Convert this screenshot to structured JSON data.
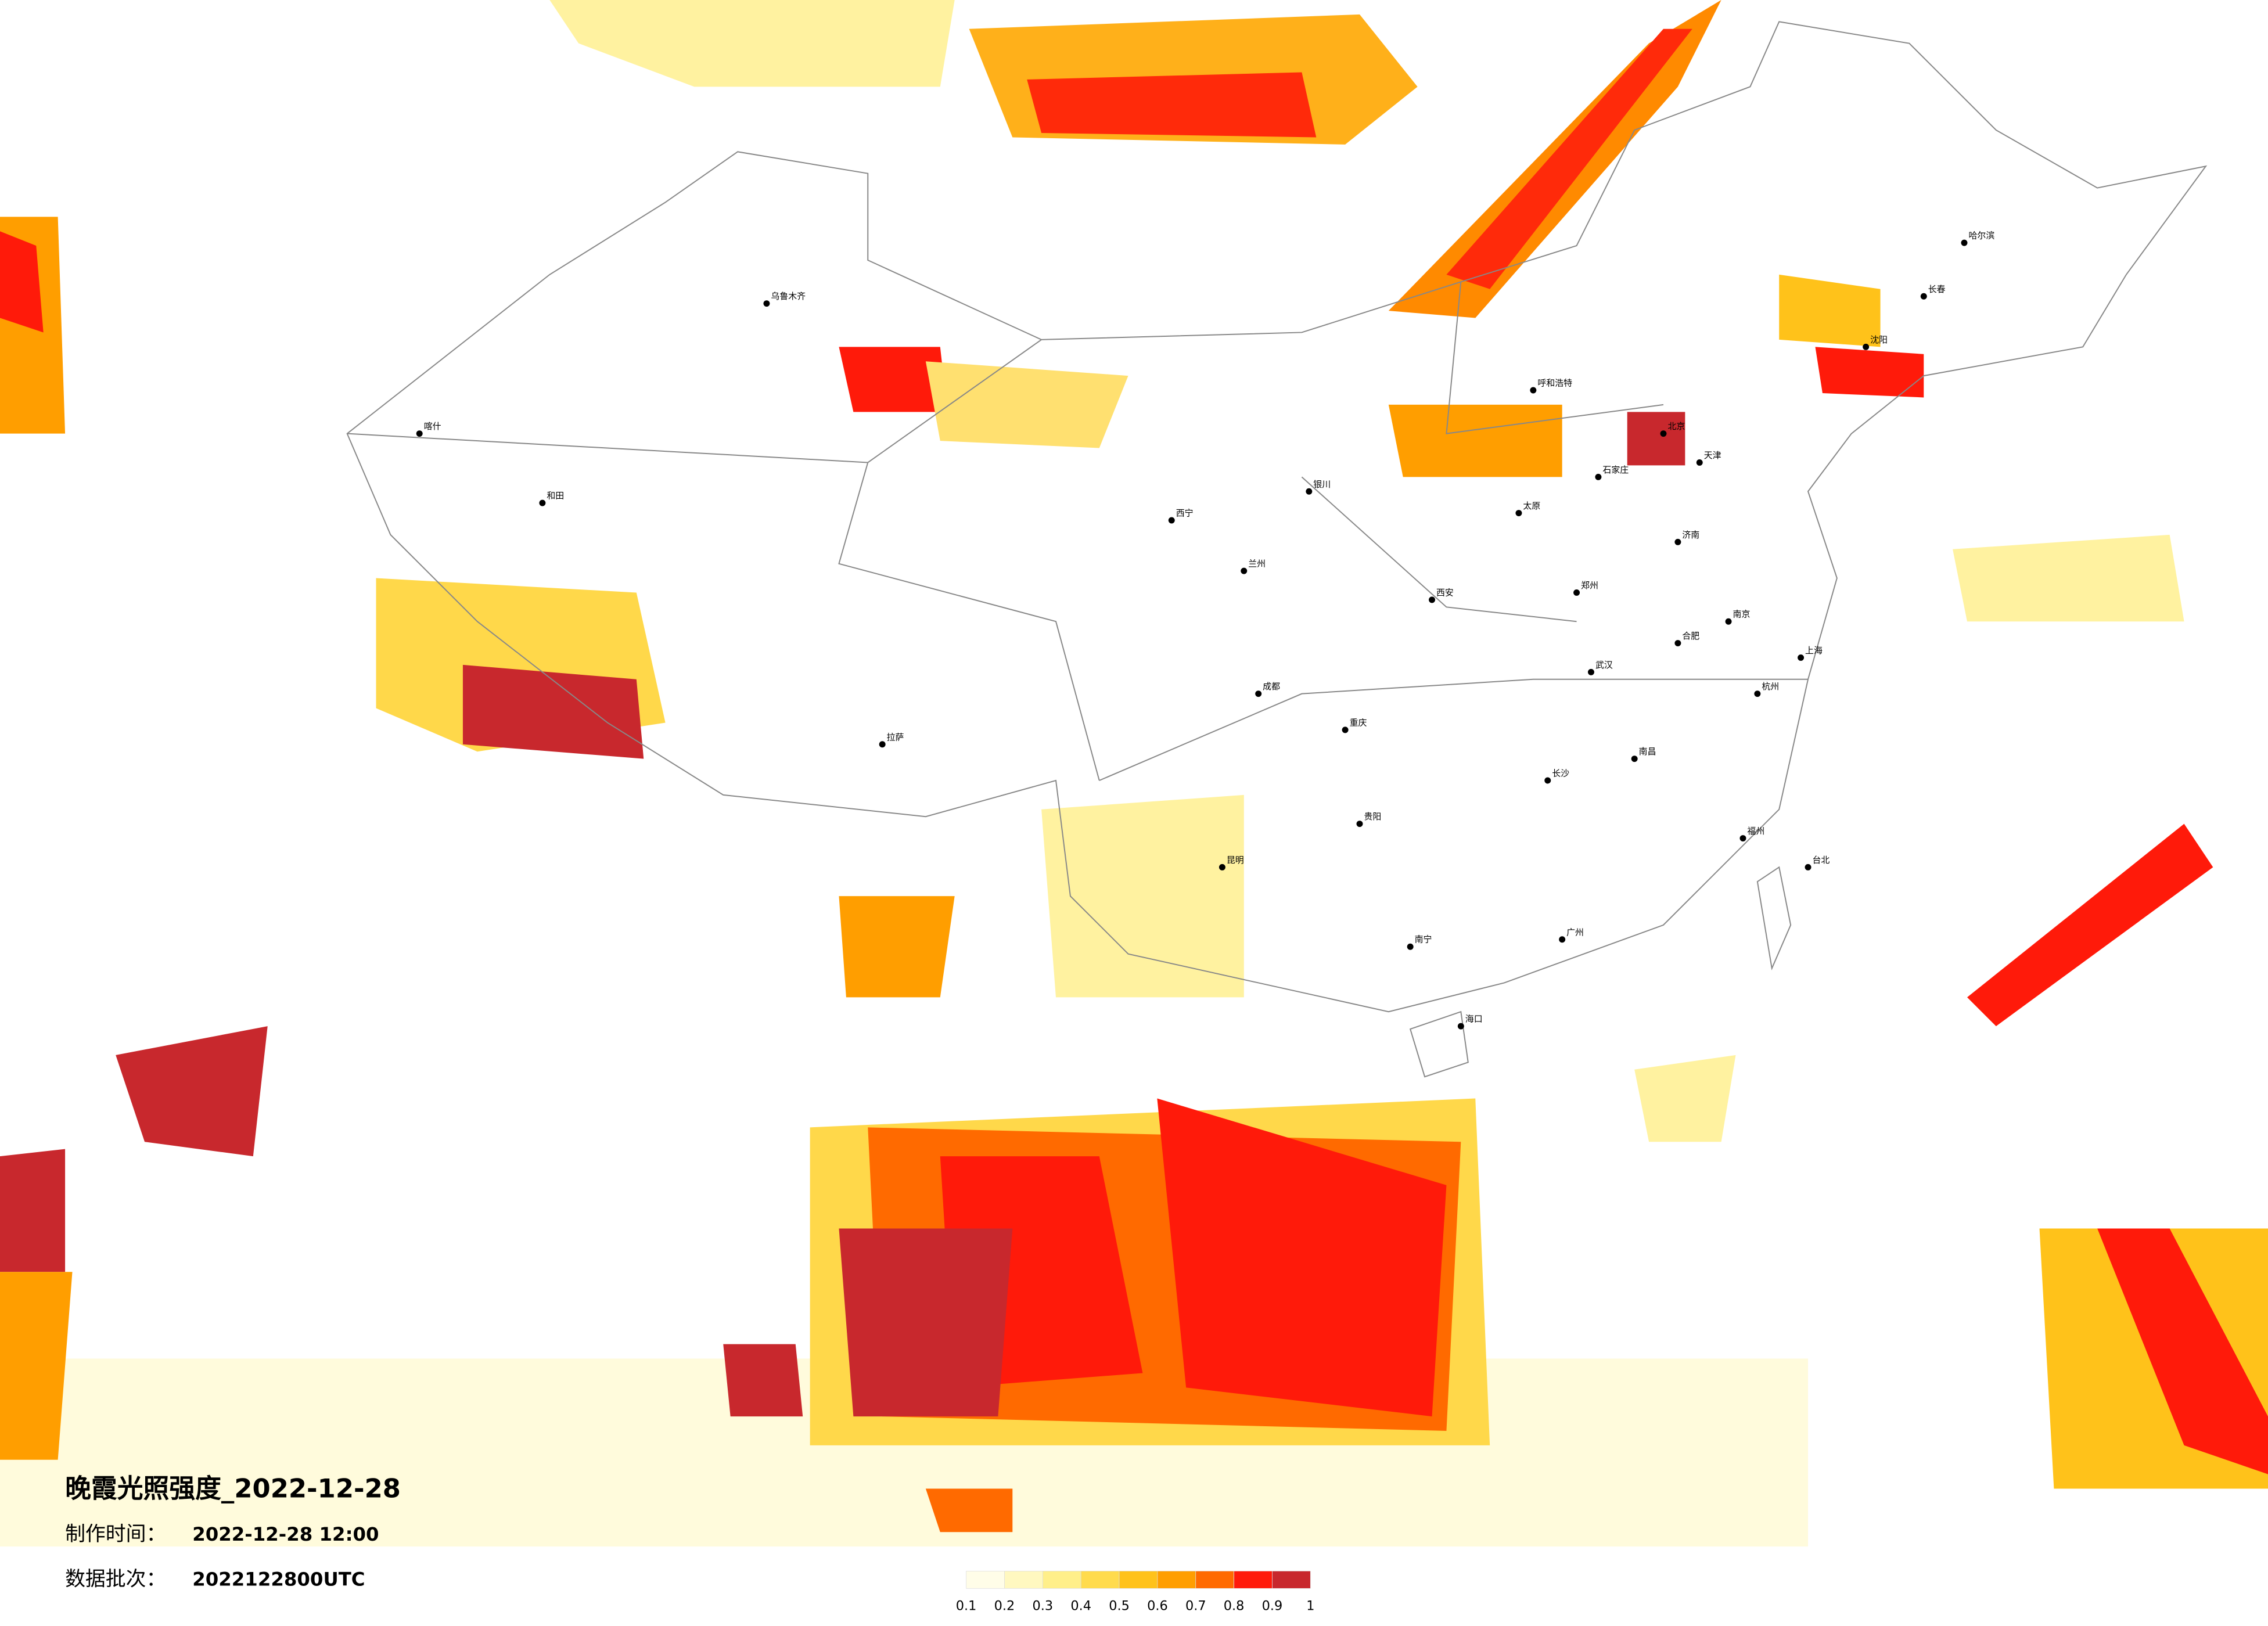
{
  "header": {
    "title": "晚霞光照强度_2022-12-28",
    "made_label": "制作时间：",
    "made_value": "2022-12-28 12:00",
    "batch_label": "数据批次：",
    "batch_value": "2022122800UTC"
  },
  "legend": {
    "ticks": [
      "0.1",
      "0.2",
      "0.3",
      "0.4",
      "0.5",
      "0.6",
      "0.7",
      "0.8",
      "0.9",
      "1"
    ],
    "colors": [
      "#fffde8",
      "#fff8c0",
      "#ffef8a",
      "#ffdb4d",
      "#ffc21a",
      "#ff9e00",
      "#ff6a00",
      "#ff1a0a",
      "#c8282d"
    ]
  },
  "cities": [
    "哈尔滨",
    "长春",
    "沈阳",
    "北京",
    "天津",
    "石家庄",
    "太原",
    "呼和浩特",
    "济南",
    "郑州",
    "西安",
    "兰州",
    "西宁",
    "银川",
    "乌鲁木齐",
    "拉萨",
    "成都",
    "重庆",
    "武汉",
    "长沙",
    "南昌",
    "合肥",
    "南京",
    "上海",
    "杭州",
    "福州",
    "广州",
    "南宁",
    "贵阳",
    "昆明",
    "海口",
    "台北",
    "喀什",
    "和田"
  ]
}
